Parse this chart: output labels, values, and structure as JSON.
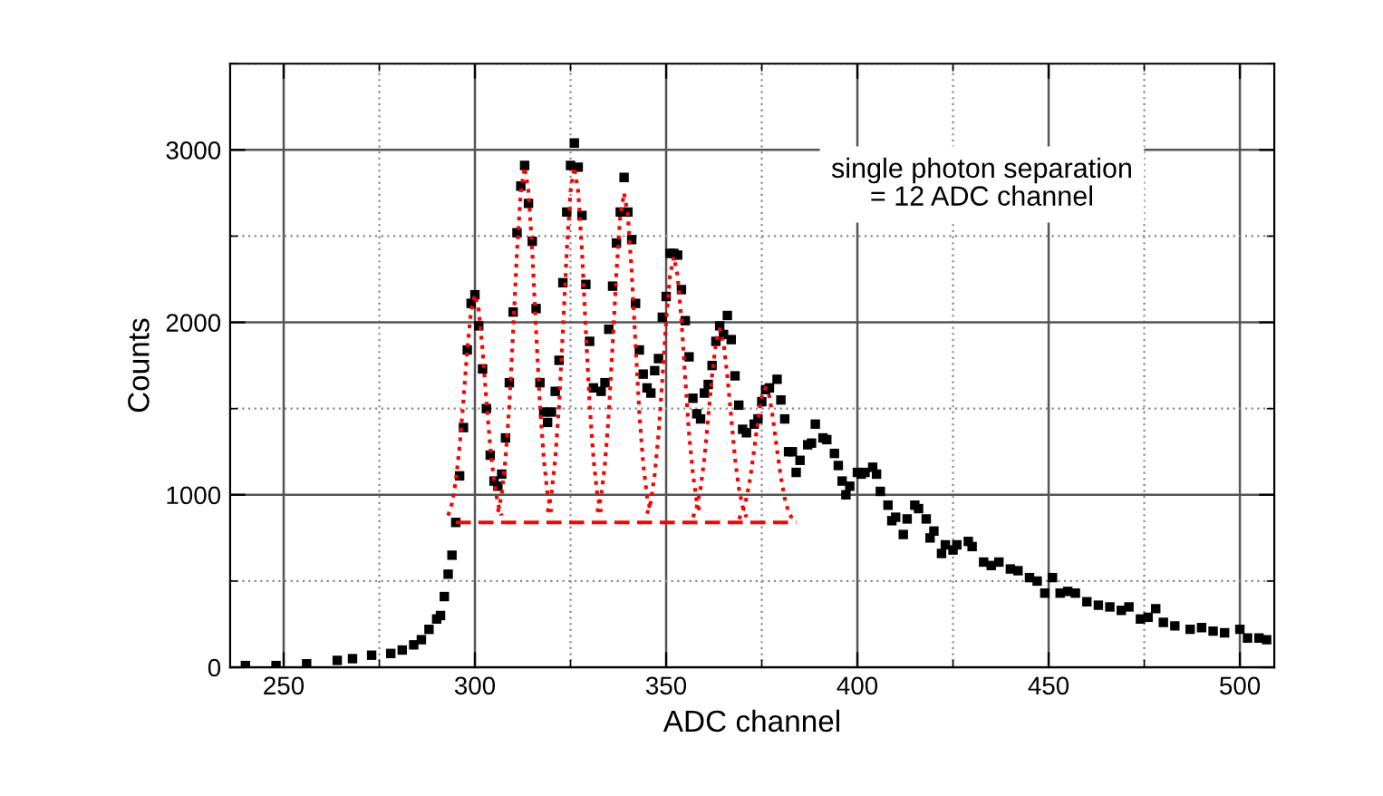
{
  "chart_data": {
    "type": "scatter",
    "xlabel": "ADC channel",
    "ylabel": "Counts",
    "annotations": [
      "single photon separation\n= 12 ADC channel"
    ],
    "xlim": [
      236,
      509
    ],
    "ylim": [
      0,
      3500
    ],
    "xticks": [
      250,
      300,
      350,
      400,
      450,
      500
    ],
    "yticks": [
      0,
      1000,
      2000,
      3000
    ],
    "grid": true,
    "series": [
      {
        "color": "#000000",
        "marker": "square",
        "x": [
          240,
          248,
          256,
          264,
          268,
          273,
          278,
          281,
          284,
          286,
          288,
          290,
          291,
          292,
          293,
          294,
          295,
          296,
          297,
          298,
          299,
          300,
          301,
          302,
          303,
          304,
          305,
          306,
          307,
          308,
          309,
          310,
          311,
          312,
          313,
          314,
          315,
          316,
          317,
          318,
          319,
          320,
          321,
          322,
          323,
          324,
          325,
          326,
          327,
          328,
          329,
          330,
          331,
          333,
          334,
          335,
          336,
          337,
          338,
          339,
          340,
          341,
          342,
          343,
          344,
          345,
          346,
          347,
          348,
          349,
          350,
          351,
          352,
          353,
          354,
          355,
          356,
          357,
          358,
          359,
          360,
          361,
          362,
          363,
          364,
          365,
          366,
          367,
          368,
          369,
          370,
          371,
          373,
          374,
          375,
          376,
          377,
          379,
          380,
          381,
          382,
          383,
          384,
          385,
          387,
          388,
          389,
          391,
          392,
          394,
          395,
          396,
          397,
          398,
          400,
          401,
          402,
          404,
          405,
          406,
          408,
          409,
          410,
          412,
          413,
          415,
          416,
          418,
          419,
          420,
          422,
          423,
          425,
          426,
          429,
          430,
          433,
          435,
          437,
          440,
          442,
          445,
          447,
          449,
          451,
          453,
          455,
          457,
          460,
          463,
          466,
          469,
          471,
          474,
          476,
          478,
          480,
          483,
          487,
          490,
          493,
          496,
          500,
          502,
          505,
          507
        ],
        "values": [
          10,
          10,
          20,
          40,
          50,
          70,
          80,
          100,
          130,
          160,
          220,
          280,
          300,
          410,
          540,
          650,
          840,
          1110,
          1390,
          1840,
          2110,
          2160,
          1980,
          1730,
          1500,
          1230,
          1080,
          1050,
          1120,
          1330,
          1650,
          2060,
          2520,
          2790,
          2910,
          2690,
          2470,
          2080,
          1650,
          1480,
          1420,
          1480,
          1600,
          1780,
          2230,
          2640,
          2910,
          3040,
          2900,
          2620,
          2220,
          1890,
          1620,
          1600,
          1650,
          1960,
          2210,
          2460,
          2640,
          2840,
          2640,
          2480,
          2110,
          1840,
          1700,
          1620,
          1590,
          1720,
          1790,
          2030,
          2150,
          2400,
          2400,
          2390,
          2190,
          2010,
          1800,
          1560,
          1470,
          1440,
          1590,
          1640,
          1750,
          1890,
          1980,
          1930,
          2040,
          1900,
          1690,
          1520,
          1380,
          1360,
          1410,
          1440,
          1540,
          1610,
          1620,
          1670,
          1550,
          1440,
          1250,
          1250,
          1130,
          1200,
          1290,
          1300,
          1410,
          1330,
          1320,
          1240,
          1170,
          1080,
          1000,
          1050,
          1130,
          1120,
          1130,
          1160,
          1120,
          1020,
          940,
          850,
          870,
          770,
          860,
          940,
          920,
          860,
          750,
          790,
          660,
          710,
          680,
          710,
          730,
          700,
          610,
          590,
          610,
          570,
          560,
          520,
          500,
          430,
          520,
          430,
          440,
          430,
          380,
          360,
          350,
          330,
          350,
          280,
          290,
          340,
          260,
          240,
          220,
          230,
          210,
          200,
          220,
          170,
          170,
          160
        ]
      },
      {
        "type": "line",
        "color": "#ff0000",
        "line_style": "dotted",
        "x": [
          293,
          294,
          295,
          296,
          297,
          298,
          299,
          300,
          301,
          302,
          303,
          304,
          305,
          306,
          307
        ],
        "values": [
          880,
          950,
          1080,
          1280,
          1550,
          1840,
          2070,
          2160,
          2070,
          1840,
          1550,
          1280,
          1080,
          950,
          880
        ]
      },
      {
        "type": "line",
        "color": "#ff0000",
        "line_style": "dotted",
        "x": [
          306,
          307,
          308,
          309,
          310,
          311,
          312,
          313,
          314,
          315,
          316,
          317,
          318,
          319,
          320
        ],
        "values": [
          900,
          1000,
          1210,
          1520,
          1950,
          2410,
          2760,
          2900,
          2760,
          2410,
          1950,
          1520,
          1210,
          1000,
          900
        ]
      },
      {
        "type": "line",
        "color": "#ff0000",
        "line_style": "dotted",
        "x": [
          319,
          320,
          321,
          322,
          323,
          324,
          325,
          326,
          327,
          328,
          329,
          330,
          331,
          332,
          333
        ],
        "values": [
          900,
          1000,
          1210,
          1520,
          1950,
          2410,
          2760,
          2900,
          2760,
          2410,
          1950,
          1520,
          1210,
          1000,
          900
        ]
      },
      {
        "type": "line",
        "color": "#ff0000",
        "line_style": "dotted",
        "x": [
          332,
          333,
          334,
          335,
          336,
          337,
          338,
          339,
          340,
          341,
          342,
          343,
          344,
          345,
          346
        ],
        "values": [
          900,
          990,
          1180,
          1470,
          1870,
          2290,
          2620,
          2750,
          2620,
          2290,
          1870,
          1470,
          1180,
          990,
          900
        ]
      },
      {
        "type": "line",
        "color": "#ff0000",
        "line_style": "dotted",
        "x": [
          345,
          346,
          347,
          348,
          349,
          350,
          351,
          352,
          353,
          354,
          355,
          356,
          357,
          358,
          359
        ],
        "values": [
          890,
          960,
          1120,
          1350,
          1670,
          2010,
          2270,
          2380,
          2270,
          2010,
          1670,
          1350,
          1120,
          960,
          890
        ]
      },
      {
        "type": "line",
        "color": "#ff0000",
        "line_style": "dotted",
        "x": [
          357,
          358,
          359,
          360,
          361,
          362,
          363,
          364,
          365,
          366,
          367,
          368,
          369,
          370,
          371
        ],
        "values": [
          870,
          930,
          1040,
          1210,
          1450,
          1690,
          1880,
          1960,
          1880,
          1690,
          1450,
          1210,
          1040,
          930,
          870
        ]
      },
      {
        "type": "line",
        "color": "#ff0000",
        "line_style": "dotted",
        "x": [
          369,
          370,
          371,
          372,
          373,
          374,
          375,
          376,
          377,
          378,
          379,
          380,
          381,
          382,
          383
        ],
        "values": [
          860,
          900,
          980,
          1100,
          1260,
          1430,
          1570,
          1620,
          1570,
          1430,
          1260,
          1100,
          980,
          900,
          860
        ]
      },
      {
        "type": "line",
        "color": "#ff0000",
        "line_style": "dashed",
        "x": [
          295,
          384
        ],
        "values": [
          840,
          840
        ]
      }
    ]
  }
}
